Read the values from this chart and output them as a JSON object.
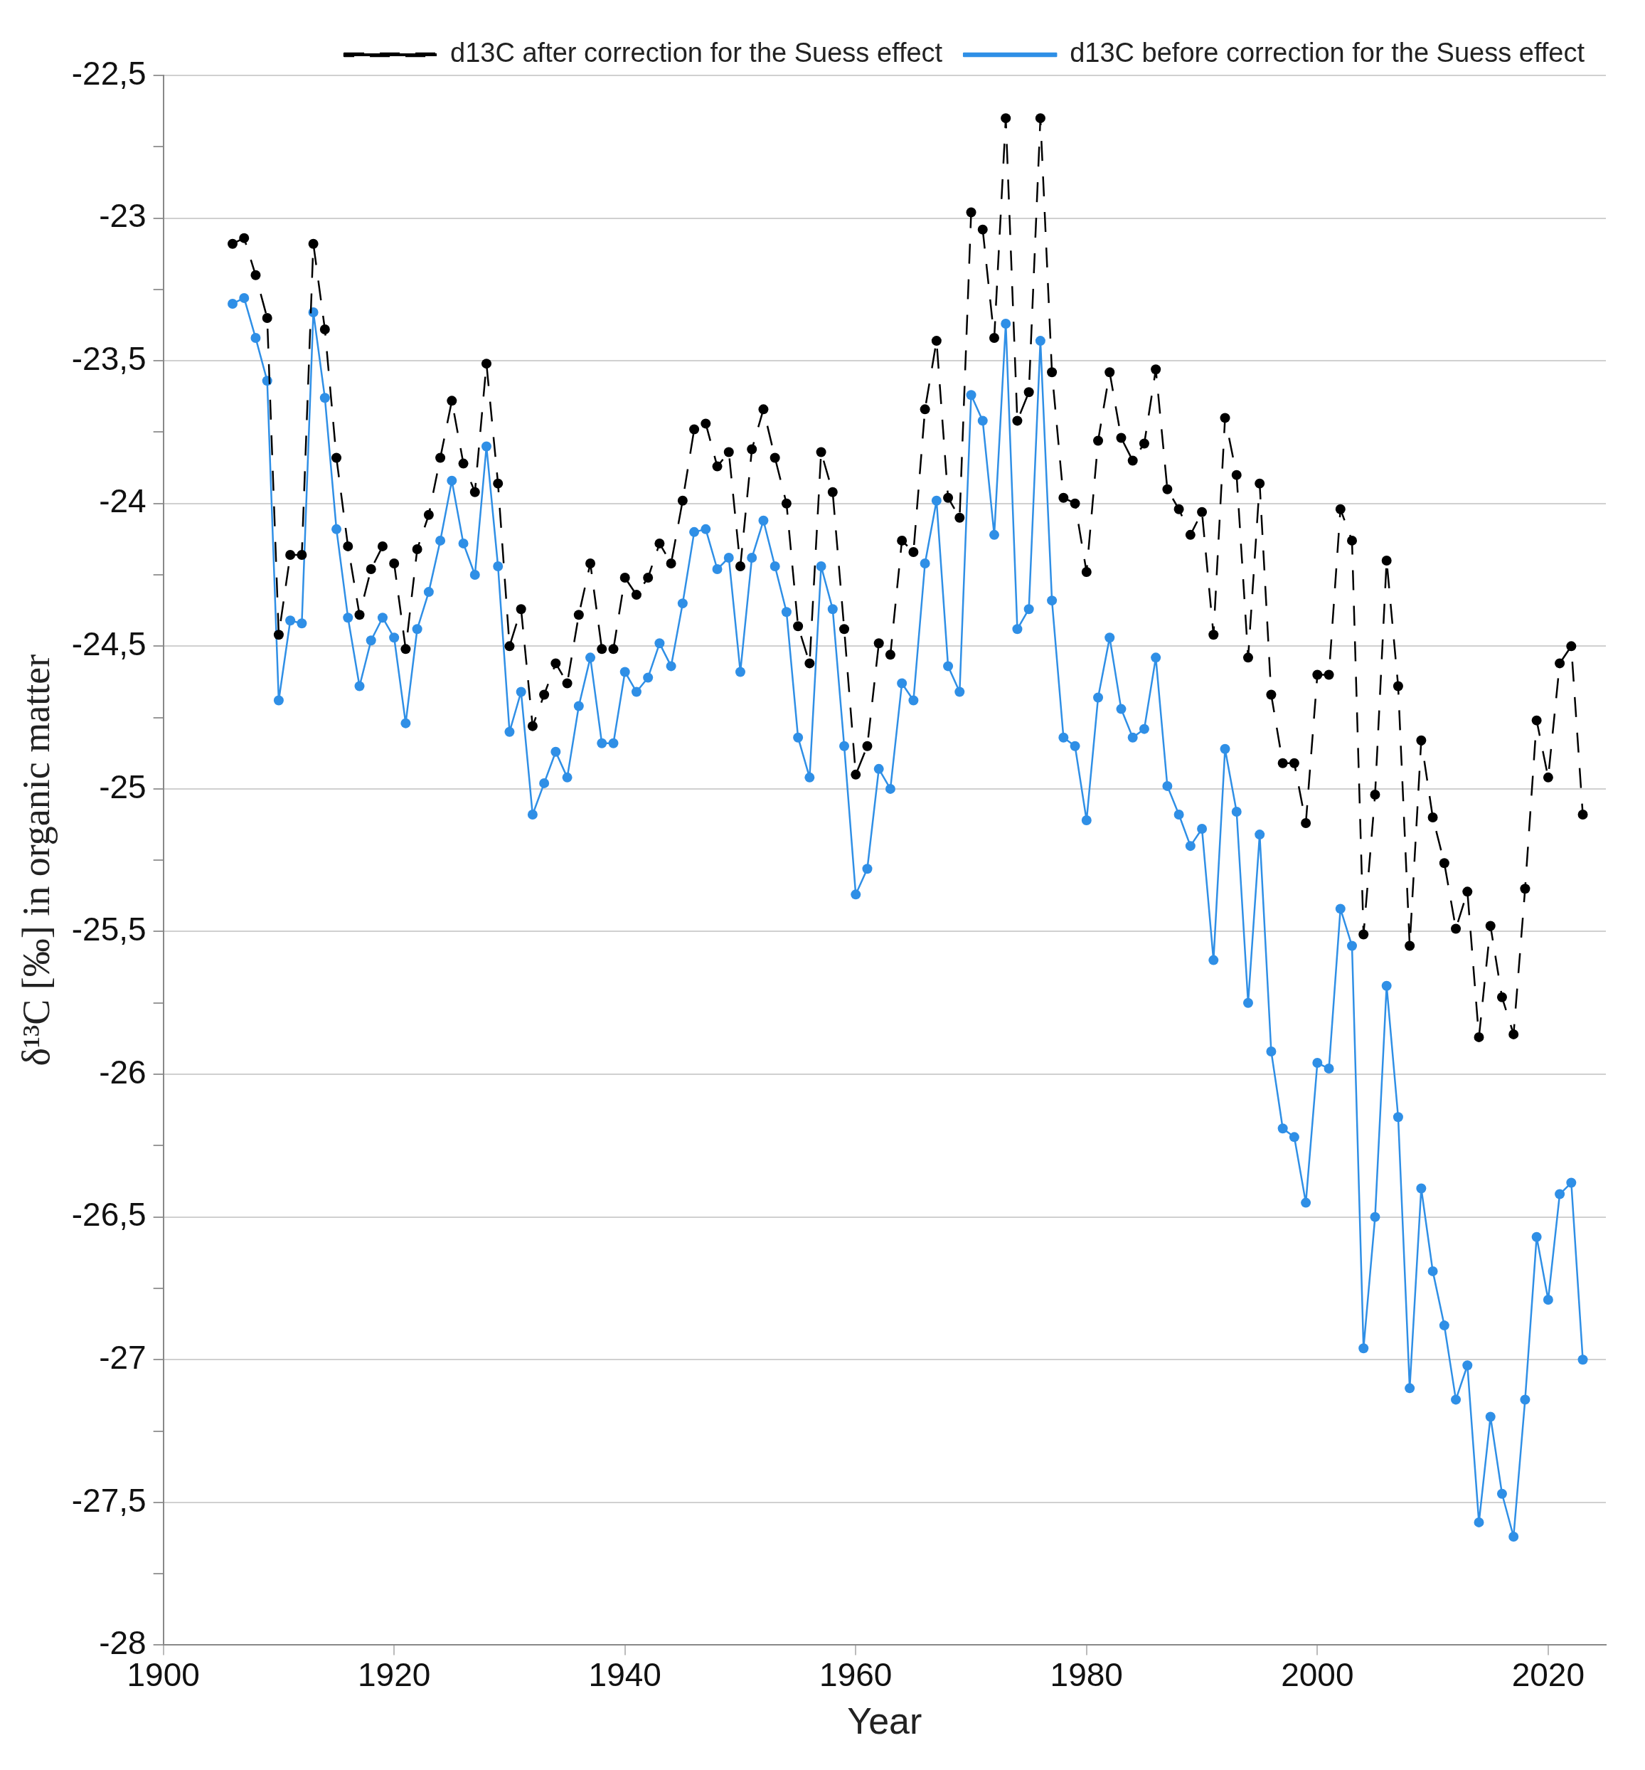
{
  "chart_data": {
    "type": "line",
    "xlabel": "Year",
    "ylabel": "δ¹³C [‰] in organic matter",
    "x": [
      1906,
      1907,
      1908,
      1909,
      1910,
      1911,
      1912,
      1913,
      1914,
      1915,
      1916,
      1917,
      1918,
      1919,
      1920,
      1921,
      1922,
      1923,
      1924,
      1925,
      1926,
      1927,
      1928,
      1929,
      1930,
      1931,
      1932,
      1933,
      1934,
      1935,
      1936,
      1937,
      1938,
      1939,
      1940,
      1941,
      1942,
      1943,
      1944,
      1945,
      1946,
      1947,
      1948,
      1949,
      1950,
      1951,
      1952,
      1953,
      1954,
      1955,
      1956,
      1957,
      1958,
      1959,
      1960,
      1961,
      1962,
      1963,
      1964,
      1965,
      1966,
      1967,
      1968,
      1969,
      1970,
      1971,
      1972,
      1973,
      1974,
      1975,
      1976,
      1977,
      1978,
      1979,
      1980,
      1981,
      1982,
      1983,
      1984,
      1985,
      1986,
      1987,
      1988,
      1989,
      1990,
      1991,
      1992,
      1993,
      1994,
      1995,
      1996,
      1997,
      1998,
      1999,
      2000,
      2001,
      2002,
      2003,
      2004,
      2005,
      2006,
      2007,
      2008,
      2009,
      2010,
      2011,
      2012,
      2013,
      2014,
      2015,
      2016,
      2017,
      2018,
      2019,
      2020,
      2021,
      2022,
      2023
    ],
    "series": [
      {
        "name": "d13C after correction for the Suess effect",
        "color": "#000000",
        "line_style": "dashed",
        "marker": "circle",
        "values": [
          -23.09,
          -23.07,
          -23.2,
          -23.35,
          -24.46,
          -24.18,
          -24.18,
          -23.09,
          -23.39,
          -23.84,
          -24.15,
          -24.39,
          -24.23,
          -24.15,
          -24.21,
          -24.51,
          -24.16,
          -24.04,
          -23.84,
          -23.64,
          -23.86,
          -23.96,
          -23.51,
          -23.93,
          -24.5,
          -24.37,
          -24.78,
          -24.67,
          -24.56,
          -24.63,
          -24.39,
          -24.21,
          -24.51,
          -24.51,
          -24.26,
          -24.32,
          -24.26,
          -24.14,
          -24.21,
          -23.99,
          -23.74,
          -23.72,
          -23.87,
          -23.82,
          -24.22,
          -23.81,
          -23.67,
          -23.84,
          -24.0,
          -24.43,
          -24.56,
          -23.82,
          -23.96,
          -24.44,
          -24.95,
          -24.85,
          -24.49,
          -24.53,
          -24.13,
          -24.17,
          -23.67,
          -23.43,
          -23.98,
          -24.05,
          -22.98,
          -23.04,
          -23.42,
          -22.65,
          -23.71,
          -23.61,
          -22.65,
          -23.54,
          -23.98,
          -24.0,
          -24.24,
          -23.78,
          -23.54,
          -23.77,
          -23.85,
          -23.79,
          -23.53,
          -23.95,
          -24.02,
          -24.11,
          -24.03,
          -24.46,
          -23.7,
          -23.9,
          -24.54,
          -23.93,
          -24.67,
          -24.91,
          -24.91,
          -25.12,
          -24.6,
          -24.6,
          -24.02,
          -24.13,
          -25.51,
          -25.02,
          -24.2,
          -24.64,
          -25.55,
          -24.83,
          -25.1,
          -25.26,
          -25.49,
          -25.36,
          -25.87,
          -25.48,
          -25.73,
          -25.86,
          -25.35,
          -24.76,
          -24.96,
          -24.56,
          -24.5,
          -25.09
        ]
      },
      {
        "name": "d13C before correction for the Suess effect",
        "color": "#2f8fe6",
        "line_style": "solid",
        "marker": "circle",
        "values": [
          -23.3,
          -23.28,
          -23.42,
          -23.57,
          -24.69,
          -24.41,
          -24.42,
          -23.33,
          -23.63,
          -24.09,
          -24.4,
          -24.64,
          -24.48,
          -24.4,
          -24.47,
          -24.77,
          -24.44,
          -24.31,
          -24.13,
          -23.92,
          -24.14,
          -24.25,
          -23.8,
          -24.22,
          -24.8,
          -24.66,
          -25.09,
          -24.98,
          -24.87,
          -24.96,
          -24.71,
          -24.54,
          -24.84,
          -24.84,
          -24.59,
          -24.66,
          -24.61,
          -24.49,
          -24.57,
          -24.35,
          -24.1,
          -24.09,
          -24.23,
          -24.19,
          -24.59,
          -24.19,
          -24.06,
          -24.22,
          -24.38,
          -24.82,
          -24.96,
          -24.22,
          -24.37,
          -24.85,
          -25.37,
          -25.28,
          -24.93,
          -25.0,
          -24.63,
          -24.69,
          -24.21,
          -23.99,
          -24.57,
          -24.66,
          -23.62,
          -23.71,
          -24.11,
          -23.37,
          -24.44,
          -24.37,
          -23.43,
          -24.34,
          -24.82,
          -24.85,
          -25.11,
          -24.68,
          -24.47,
          -24.72,
          -24.82,
          -24.79,
          -24.54,
          -24.99,
          -25.09,
          -25.2,
          -25.14,
          -25.6,
          -24.86,
          -25.08,
          -25.75,
          -25.16,
          -25.92,
          -26.19,
          -26.22,
          -26.45,
          -25.96,
          -25.98,
          -25.42,
          -25.55,
          -26.96,
          -26.5,
          -25.69,
          -26.15,
          -27.1,
          -26.4,
          -26.69,
          -26.88,
          -27.14,
          -27.02,
          -27.57,
          -27.2,
          -27.47,
          -27.62,
          -27.14,
          -26.57,
          -26.79,
          -26.42,
          -26.38,
          -27.0
        ]
      }
    ],
    "xlim": [
      1900,
      2025
    ],
    "xticks": [
      1900,
      1920,
      1940,
      1960,
      1980,
      2000,
      2020
    ],
    "ylim": [
      -28,
      -22.5
    ],
    "yticks": [
      {
        "value": -22.5,
        "label": "-22,5"
      },
      {
        "value": -22.75,
        "label": null
      },
      {
        "value": -23,
        "label": "-23"
      },
      {
        "value": -23.25,
        "label": null
      },
      {
        "value": -23.5,
        "label": "-23,5"
      },
      {
        "value": -23.75,
        "label": null
      },
      {
        "value": -24,
        "label": "-24"
      },
      {
        "value": -24.25,
        "label": null
      },
      {
        "value": -24.5,
        "label": "-24,5"
      },
      {
        "value": -24.75,
        "label": null
      },
      {
        "value": -25,
        "label": "-25"
      },
      {
        "value": -25.25,
        "label": null
      },
      {
        "value": -25.5,
        "label": "-25,5"
      },
      {
        "value": -25.75,
        "label": null
      },
      {
        "value": -26,
        "label": "-26"
      },
      {
        "value": -26.25,
        "label": null
      },
      {
        "value": -26.5,
        "label": "-26,5"
      },
      {
        "value": -26.75,
        "label": null
      },
      {
        "value": -27,
        "label": "-27"
      },
      {
        "value": -27.25,
        "label": null
      },
      {
        "value": -27.5,
        "label": "-27,5"
      },
      {
        "value": -27.75,
        "label": null
      },
      {
        "value": -28,
        "label": "-28"
      }
    ],
    "grid": "y",
    "legend": "top right"
  }
}
